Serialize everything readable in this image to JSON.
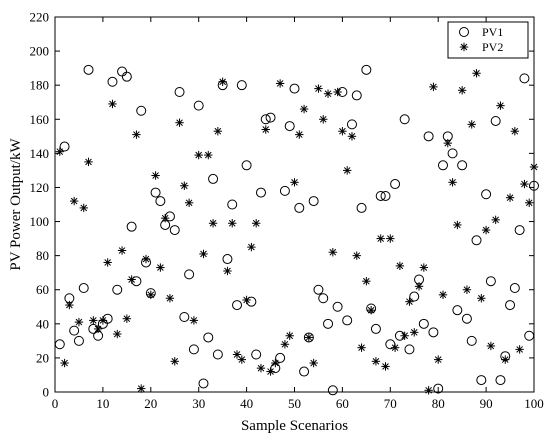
{
  "chart_data": {
    "type": "scatter",
    "xlabel": "Sample Scenarios",
    "ylabel": "PV Power Output/kW",
    "xlim": [
      0,
      100
    ],
    "ylim": [
      0,
      220
    ],
    "xticks": [
      0,
      10,
      20,
      30,
      40,
      50,
      60,
      70,
      80,
      90,
      100
    ],
    "yticks": [
      0,
      20,
      40,
      60,
      80,
      100,
      120,
      140,
      160,
      180,
      200,
      220
    ],
    "legend_position": "top-right",
    "grid": false,
    "series": [
      {
        "name": "PV1",
        "marker": "circle",
        "points": [
          [
            1,
            28
          ],
          [
            2,
            144
          ],
          [
            3,
            55
          ],
          [
            4,
            36
          ],
          [
            5,
            30
          ],
          [
            6,
            61
          ],
          [
            7,
            189
          ],
          [
            8,
            37
          ],
          [
            9,
            33
          ],
          [
            10,
            40
          ],
          [
            11,
            43
          ],
          [
            12,
            182
          ],
          [
            13,
            60
          ],
          [
            14,
            188
          ],
          [
            15,
            185
          ],
          [
            16,
            97
          ],
          [
            17,
            65
          ],
          [
            18,
            165
          ],
          [
            19,
            76
          ],
          [
            20,
            58
          ],
          [
            21,
            117
          ],
          [
            22,
            112
          ],
          [
            23,
            98
          ],
          [
            24,
            103
          ],
          [
            25,
            95
          ],
          [
            26,
            176
          ],
          [
            27,
            44
          ],
          [
            28,
            69
          ],
          [
            29,
            25
          ],
          [
            30,
            168
          ],
          [
            31,
            5
          ],
          [
            32,
            32
          ],
          [
            33,
            125
          ],
          [
            34,
            22
          ],
          [
            35,
            180
          ],
          [
            36,
            78
          ],
          [
            37,
            110
          ],
          [
            38,
            51
          ],
          [
            39,
            180
          ],
          [
            40,
            133
          ],
          [
            41,
            53
          ],
          [
            42,
            22
          ],
          [
            43,
            117
          ],
          [
            44,
            160
          ],
          [
            45,
            161
          ],
          [
            46,
            14
          ],
          [
            47,
            20
          ],
          [
            48,
            118
          ],
          [
            49,
            156
          ],
          [
            50,
            178
          ],
          [
            51,
            108
          ],
          [
            52,
            12
          ],
          [
            53,
            32
          ],
          [
            54,
            112
          ],
          [
            55,
            60
          ],
          [
            56,
            55
          ],
          [
            57,
            40
          ],
          [
            58,
            1
          ],
          [
            59,
            50
          ],
          [
            60,
            176
          ],
          [
            61,
            42
          ],
          [
            62,
            157
          ],
          [
            63,
            174
          ],
          [
            64,
            108
          ],
          [
            65,
            189
          ],
          [
            66,
            49
          ],
          [
            67,
            37
          ],
          [
            68,
            115
          ],
          [
            69,
            115
          ],
          [
            70,
            28
          ],
          [
            71,
            122
          ],
          [
            72,
            33
          ],
          [
            73,
            160
          ],
          [
            74,
            25
          ],
          [
            75,
            56
          ],
          [
            76,
            66
          ],
          [
            77,
            40
          ],
          [
            78,
            150
          ],
          [
            79,
            35
          ],
          [
            80,
            2
          ],
          [
            81,
            133
          ],
          [
            82,
            150
          ],
          [
            83,
            140
          ],
          [
            84,
            48
          ],
          [
            85,
            133
          ],
          [
            86,
            43
          ],
          [
            87,
            30
          ],
          [
            88,
            89
          ],
          [
            89,
            7
          ],
          [
            90,
            116
          ],
          [
            91,
            65
          ],
          [
            92,
            159
          ],
          [
            93,
            7
          ],
          [
            94,
            21
          ],
          [
            95,
            51
          ],
          [
            96,
            61
          ],
          [
            97,
            95
          ],
          [
            98,
            184
          ],
          [
            99,
            33
          ],
          [
            100,
            121
          ]
        ]
      },
      {
        "name": "PV2",
        "marker": "asterisk",
        "points": [
          [
            1,
            141
          ],
          [
            2,
            17
          ],
          [
            3,
            51
          ],
          [
            4,
            112
          ],
          [
            5,
            41
          ],
          [
            6,
            108
          ],
          [
            7,
            135
          ],
          [
            8,
            42
          ],
          [
            9,
            37
          ],
          [
            10,
            42
          ],
          [
            11,
            76
          ],
          [
            12,
            169
          ],
          [
            13,
            34
          ],
          [
            14,
            83
          ],
          [
            15,
            43
          ],
          [
            16,
            66
          ],
          [
            17,
            151
          ],
          [
            18,
            2
          ],
          [
            19,
            78
          ],
          [
            20,
            57
          ],
          [
            21,
            127
          ],
          [
            22,
            73
          ],
          [
            23,
            102
          ],
          [
            24,
            55
          ],
          [
            25,
            18
          ],
          [
            26,
            158
          ],
          [
            27,
            121
          ],
          [
            28,
            111
          ],
          [
            29,
            42
          ],
          [
            30,
            139
          ],
          [
            31,
            81
          ],
          [
            32,
            139
          ],
          [
            33,
            99
          ],
          [
            34,
            153
          ],
          [
            35,
            182
          ],
          [
            36,
            71
          ],
          [
            37,
            99
          ],
          [
            38,
            22
          ],
          [
            39,
            19
          ],
          [
            40,
            54
          ],
          [
            41,
            85
          ],
          [
            42,
            99
          ],
          [
            43,
            14
          ],
          [
            44,
            154
          ],
          [
            45,
            12
          ],
          [
            46,
            17
          ],
          [
            47,
            181
          ],
          [
            48,
            28
          ],
          [
            49,
            33
          ],
          [
            50,
            123
          ],
          [
            51,
            151
          ],
          [
            52,
            166
          ],
          [
            53,
            32
          ],
          [
            54,
            17
          ],
          [
            55,
            178
          ],
          [
            56,
            160
          ],
          [
            57,
            175
          ],
          [
            58,
            82
          ],
          [
            59,
            176
          ],
          [
            60,
            153
          ],
          [
            61,
            130
          ],
          [
            62,
            150
          ],
          [
            63,
            80
          ],
          [
            64,
            26
          ],
          [
            65,
            65
          ],
          [
            66,
            48
          ],
          [
            67,
            18
          ],
          [
            68,
            90
          ],
          [
            69,
            15
          ],
          [
            70,
            90
          ],
          [
            71,
            26
          ],
          [
            72,
            74
          ],
          [
            73,
            33
          ],
          [
            74,
            53
          ],
          [
            75,
            35
          ],
          [
            76,
            62
          ],
          [
            77,
            73
          ],
          [
            78,
            1
          ],
          [
            79,
            179
          ],
          [
            80,
            19
          ],
          [
            81,
            57
          ],
          [
            82,
            146
          ],
          [
            83,
            123
          ],
          [
            84,
            98
          ],
          [
            85,
            177
          ],
          [
            86,
            60
          ],
          [
            87,
            157
          ],
          [
            88,
            187
          ],
          [
            89,
            55
          ],
          [
            90,
            95
          ],
          [
            91,
            27
          ],
          [
            92,
            101
          ],
          [
            93,
            168
          ],
          [
            94,
            19
          ],
          [
            95,
            114
          ],
          [
            96,
            153
          ],
          [
            97,
            25
          ],
          [
            98,
            122
          ],
          [
            99,
            111
          ],
          [
            100,
            132
          ]
        ]
      }
    ]
  }
}
